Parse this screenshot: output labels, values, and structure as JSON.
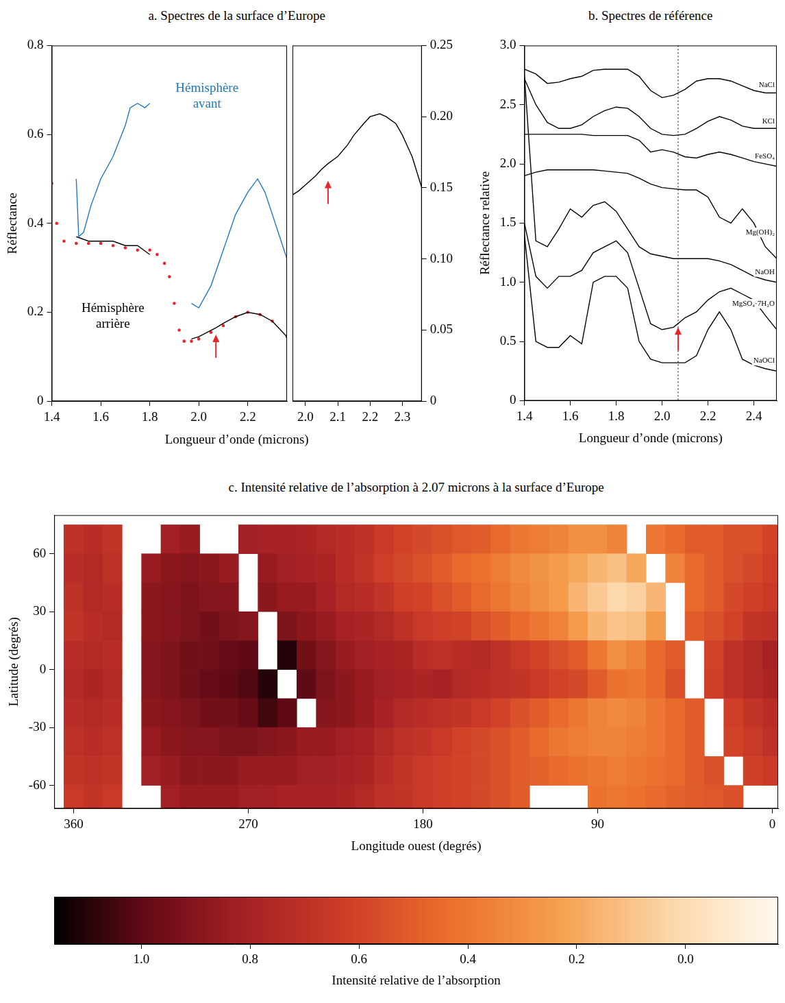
{
  "chart_data": [
    {
      "type": "line",
      "title": "a. Spectres de la surface d’Europe",
      "xlabel": "Longueur d’onde (microns)",
      "ylabel": "Réflectance",
      "xlim": [
        1.4,
        2.36
      ],
      "ylim": [
        0,
        0.8
      ],
      "xticks": [
        1.4,
        1.6,
        1.8,
        {
          "value": 2,
          "label": "2.0"
        },
        2.2
      ],
      "yticks": [
        0,
        0.2,
        0.4,
        0.6,
        0.8
      ],
      "grid": false,
      "arrow": {
        "x": 2.07,
        "y": 0.15
      },
      "series": [
        {
          "name": "Hémisphère avant",
          "color": "#1f78c1",
          "x": [
            1.5,
            1.51,
            1.53,
            1.56,
            1.6,
            1.65,
            1.7,
            1.72,
            1.75,
            1.78,
            1.8,
            1.9,
            1.97,
            2.0,
            2.05,
            2.1,
            2.15,
            2.2,
            2.24,
            2.27,
            2.3,
            2.33,
            2.36
          ],
          "values": [
            0.5,
            0.37,
            0.38,
            0.44,
            0.5,
            0.55,
            0.62,
            0.66,
            0.67,
            0.66,
            0.67,
            null,
            0.22,
            0.21,
            0.26,
            0.34,
            0.42,
            0.47,
            0.5,
            0.47,
            0.42,
            0.37,
            0.32
          ]
        },
        {
          "name": "Hémisphère arrière",
          "color": "#000000",
          "x": [
            1.5,
            1.55,
            1.6,
            1.65,
            1.7,
            1.75,
            1.8,
            1.9,
            1.97,
            2.0,
            2.07,
            2.1,
            2.15,
            2.2,
            2.25,
            2.3,
            2.36
          ],
          "values": [
            0.37,
            0.36,
            0.36,
            0.36,
            0.35,
            0.35,
            0.33,
            null,
            0.14,
            0.145,
            0.165,
            0.175,
            0.19,
            0.2,
            0.195,
            0.18,
            0.145
          ]
        },
        {
          "color": "#e8262a",
          "marker": "dot",
          "line_style": "none",
          "x": [
            1.4,
            1.42,
            1.45,
            1.5,
            1.55,
            1.6,
            1.65,
            1.7,
            1.75,
            1.8,
            1.83,
            1.86,
            1.88,
            1.9,
            1.92,
            1.94,
            1.97,
            2.0,
            2.05,
            2.1,
            2.15,
            2.2,
            2.25,
            2.3,
            2.36
          ],
          "values": [
            0.49,
            0.4,
            0.36,
            0.355,
            0.355,
            0.355,
            0.35,
            0.345,
            0.34,
            0.34,
            0.33,
            0.31,
            0.28,
            0.22,
            0.16,
            0.135,
            0.135,
            0.14,
            0.155,
            0.17,
            0.19,
            0.2,
            0.195,
            0.18,
            0.145
          ]
        }
      ]
    },
    {
      "type": "line",
      "xlim": [
        1.96,
        2.36
      ],
      "ylim": [
        0,
        0.25
      ],
      "xticks": [
        {
          "value": 2,
          "label": "2.0"
        },
        2.1,
        2.2,
        2.3
      ],
      "yticks": [
        0,
        0.05,
        {
          "value": 0.1,
          "label": "0.10"
        },
        0.15,
        {
          "value": 0.2,
          "label": "0.20"
        },
        0.25
      ],
      "grid": false,
      "arrow": {
        "x": 2.07,
        "y": 0.155
      },
      "series": [
        {
          "color": "#000000",
          "x": [
            1.96,
            1.98,
            2.0,
            2.03,
            2.05,
            2.07,
            2.1,
            2.13,
            2.15,
            2.18,
            2.2,
            2.23,
            2.25,
            2.28,
            2.3,
            2.33,
            2.36
          ],
          "values": [
            0.145,
            0.148,
            0.152,
            0.158,
            0.163,
            0.167,
            0.172,
            0.18,
            0.187,
            0.195,
            0.2,
            0.202,
            0.2,
            0.195,
            0.187,
            0.172,
            0.15
          ]
        }
      ]
    },
    {
      "type": "line",
      "title": "b. Spectres de référence",
      "xlabel": "Longueur d’onde (microns)",
      "ylabel": "Réflectance relative",
      "xlim": [
        1.4,
        2.5
      ],
      "ylim": [
        0,
        3
      ],
      "xticks": [
        1.4,
        1.6,
        1.8,
        {
          "value": 2,
          "label": "2.0"
        },
        2.2,
        2.4
      ],
      "yticks": [
        0,
        0.5,
        {
          "value": 1,
          "label": "1.0"
        },
        1.5,
        {
          "value": 2,
          "label": "2.0"
        },
        2.5,
        {
          "value": 3,
          "label": "3.0"
        }
      ],
      "grid": false,
      "vline": 2.07,
      "arrow": {
        "x": 2.07,
        "y": 0.62
      },
      "series": [
        {
          "name": "NaCl",
          "color": "#000000",
          "x": [
            1.4,
            1.45,
            1.5,
            1.55,
            1.6,
            1.65,
            1.7,
            1.75,
            1.8,
            1.85,
            1.9,
            1.95,
            2.0,
            2.05,
            2.1,
            2.15,
            2.2,
            2.25,
            2.3,
            2.35,
            2.4,
            2.45,
            2.5
          ],
          "values": [
            2.8,
            2.76,
            2.68,
            2.69,
            2.72,
            2.74,
            2.79,
            2.8,
            2.8,
            2.8,
            2.74,
            2.62,
            2.56,
            2.58,
            2.63,
            2.7,
            2.72,
            2.72,
            2.7,
            2.66,
            2.62,
            2.6,
            2.6
          ]
        },
        {
          "name": "KCl",
          "color": "#000000",
          "x": [
            1.4,
            1.45,
            1.5,
            1.55,
            1.6,
            1.65,
            1.7,
            1.75,
            1.8,
            1.85,
            1.9,
            1.95,
            2.0,
            2.05,
            2.1,
            2.15,
            2.2,
            2.25,
            2.3,
            2.35,
            2.4,
            2.45,
            2.5
          ],
          "values": [
            2.72,
            2.5,
            2.35,
            2.3,
            2.3,
            2.33,
            2.4,
            2.45,
            2.48,
            2.47,
            2.4,
            2.3,
            2.25,
            2.24,
            2.25,
            2.3,
            2.36,
            2.4,
            2.37,
            2.32,
            2.3,
            2.3,
            2.3
          ]
        },
        {
          "name": "FeSO₄",
          "color": "#000000",
          "x": [
            1.4,
            1.45,
            1.5,
            1.55,
            1.6,
            1.65,
            1.7,
            1.75,
            1.8,
            1.85,
            1.9,
            1.95,
            2.0,
            2.05,
            2.1,
            2.15,
            2.2,
            2.25,
            2.3,
            2.35,
            2.4,
            2.45,
            2.5
          ],
          "values": [
            2.25,
            2.25,
            2.25,
            2.25,
            2.25,
            2.25,
            2.24,
            2.24,
            2.24,
            2.24,
            2.2,
            2.1,
            2.12,
            2.1,
            2.06,
            2.05,
            2.08,
            2.1,
            2.08,
            2.05,
            2.02,
            2.0,
            1.98
          ]
        },
        {
          "name": "Mg(OH)₂",
          "color": "#000000",
          "x": [
            1.4,
            1.45,
            1.5,
            1.55,
            1.6,
            1.65,
            1.7,
            1.75,
            1.8,
            1.85,
            1.9,
            1.95,
            2.0,
            2.05,
            2.1,
            2.15,
            2.2,
            2.25,
            2.3,
            2.35,
            2.4,
            2.45,
            2.5
          ],
          "values": [
            1.9,
            1.93,
            1.95,
            1.95,
            1.95,
            1.95,
            1.95,
            1.94,
            1.93,
            1.92,
            1.88,
            1.83,
            1.8,
            1.79,
            1.78,
            1.78,
            1.72,
            1.55,
            1.5,
            1.62,
            1.5,
            1.3,
            1.2
          ]
        },
        {
          "name": "NaOH",
          "color": "#000000",
          "x": [
            1.4,
            1.45,
            1.5,
            1.55,
            1.6,
            1.65,
            1.7,
            1.75,
            1.8,
            1.85,
            1.9,
            1.95,
            2.0,
            2.05,
            2.1,
            2.15,
            2.2,
            2.25,
            2.3,
            2.35,
            2.4,
            2.45,
            2.5
          ],
          "values": [
            2.75,
            1.35,
            1.3,
            1.45,
            1.62,
            1.55,
            1.65,
            1.68,
            1.6,
            1.45,
            1.3,
            1.24,
            1.22,
            1.2,
            1.2,
            1.2,
            1.2,
            1.18,
            1.15,
            1.1,
            1.05,
            1.02,
            1.0
          ]
        },
        {
          "name": "MgSO₄·7H₂O",
          "color": "#000000",
          "x": [
            1.4,
            1.45,
            1.5,
            1.55,
            1.6,
            1.65,
            1.7,
            1.75,
            1.8,
            1.85,
            1.9,
            1.95,
            2.0,
            2.05,
            2.1,
            2.15,
            2.2,
            2.25,
            2.3,
            2.35,
            2.4,
            2.45,
            2.5
          ],
          "values": [
            1.5,
            1.05,
            0.95,
            1.05,
            1.05,
            1.1,
            1.25,
            1.3,
            1.35,
            1.25,
            0.95,
            0.65,
            0.6,
            0.62,
            0.7,
            0.75,
            0.85,
            0.92,
            0.95,
            0.9,
            0.85,
            0.72,
            0.6
          ]
        },
        {
          "name": "NaOCl",
          "color": "#000000",
          "x": [
            1.4,
            1.45,
            1.5,
            1.55,
            1.6,
            1.65,
            1.7,
            1.75,
            1.8,
            1.85,
            1.9,
            1.95,
            2.0,
            2.05,
            2.1,
            2.15,
            2.2,
            2.25,
            2.3,
            2.35,
            2.4,
            2.45,
            2.5
          ],
          "values": [
            1.4,
            0.5,
            0.45,
            0.45,
            0.55,
            0.48,
            1.0,
            1.05,
            1.05,
            0.95,
            0.5,
            0.35,
            0.32,
            0.32,
            0.32,
            0.38,
            0.6,
            0.75,
            0.6,
            0.35,
            0.3,
            0.27,
            0.25
          ]
        }
      ]
    },
    {
      "type": "heatmap",
      "title": "c. Intensité relative de l’absorption à 2.07 microns à la surface d’Europe",
      "xlabel": "Longitude ouest (degrés)",
      "ylabel": "Latitude (degrés)",
      "xlim": [
        370,
        -3
      ],
      "ylim": [
        -72,
        80
      ],
      "xticks": [
        360,
        270,
        180,
        90,
        0
      ],
      "yticks": [
        -60,
        -30,
        0,
        30,
        60
      ],
      "grid": false,
      "x": [
        360,
        350,
        340,
        330,
        320,
        310,
        300,
        290,
        280,
        270,
        260,
        250,
        240,
        230,
        220,
        210,
        200,
        190,
        180,
        170,
        160,
        150,
        140,
        130,
        120,
        110,
        100,
        90,
        80,
        70,
        60,
        50,
        40,
        30,
        20,
        10,
        0
      ],
      "y": [
        67.5,
        52.5,
        37.5,
        22.5,
        7.5,
        -7.5,
        -22.5,
        -37.5,
        -52.5,
        -67.5
      ],
      "cells": [
        [
          0.7,
          0.72,
          0.68,
          null,
          null,
          0.82,
          0.85,
          null,
          null,
          0.82,
          0.8,
          0.8,
          0.78,
          0.75,
          0.72,
          0.7,
          0.65,
          0.6,
          0.58,
          0.55,
          0.52,
          0.5,
          0.45,
          0.4,
          0.38,
          0.35,
          0.3,
          0.3,
          0.35,
          null,
          0.4,
          0.45,
          0.5,
          0.5,
          0.55,
          0.55,
          0.6
        ],
        [
          0.72,
          0.75,
          0.7,
          null,
          0.85,
          0.88,
          0.9,
          0.88,
          0.85,
          null,
          0.85,
          0.82,
          0.8,
          0.78,
          0.72,
          0.68,
          0.62,
          0.58,
          0.55,
          0.5,
          0.45,
          0.42,
          0.38,
          0.32,
          0.28,
          0.25,
          0.2,
          0.15,
          0.12,
          0.2,
          null,
          0.35,
          0.45,
          0.5,
          0.55,
          0.58,
          0.62
        ],
        [
          0.7,
          0.75,
          0.72,
          null,
          0.88,
          0.9,
          0.92,
          0.9,
          0.9,
          null,
          0.88,
          0.85,
          0.85,
          0.8,
          0.75,
          0.72,
          0.68,
          0.62,
          0.6,
          0.55,
          0.5,
          0.45,
          0.4,
          0.35,
          0.3,
          0.25,
          0.15,
          0.08,
          0.02,
          0.05,
          0.15,
          null,
          0.45,
          0.5,
          0.58,
          0.62,
          0.65
        ],
        [
          0.68,
          0.72,
          0.75,
          null,
          0.88,
          0.9,
          0.92,
          0.95,
          0.92,
          0.9,
          null,
          0.92,
          0.88,
          0.85,
          0.8,
          0.78,
          0.75,
          0.7,
          0.65,
          0.62,
          0.6,
          0.55,
          0.5,
          0.45,
          0.4,
          0.35,
          0.25,
          0.15,
          0.1,
          0.12,
          0.25,
          null,
          0.5,
          0.55,
          0.6,
          0.68,
          0.7
        ],
        [
          0.72,
          0.75,
          0.72,
          null,
          0.9,
          0.92,
          0.95,
          0.95,
          0.98,
          1.0,
          null,
          1.1,
          0.95,
          0.9,
          0.85,
          0.82,
          0.8,
          0.78,
          0.72,
          0.7,
          0.72,
          0.75,
          0.7,
          0.65,
          0.6,
          0.55,
          0.5,
          0.4,
          0.3,
          0.35,
          0.45,
          0.5,
          null,
          0.6,
          0.7,
          0.75,
          0.8
        ],
        [
          0.75,
          0.78,
          0.75,
          null,
          0.9,
          0.92,
          0.95,
          0.98,
          1.0,
          1.02,
          1.1,
          null,
          1.0,
          0.92,
          0.88,
          0.85,
          0.82,
          0.8,
          0.78,
          0.8,
          0.75,
          0.72,
          0.7,
          0.68,
          0.65,
          0.6,
          0.58,
          0.5,
          0.42,
          0.4,
          0.45,
          0.55,
          null,
          0.62,
          0.7,
          0.75,
          0.78
        ],
        [
          0.72,
          0.75,
          0.72,
          null,
          0.88,
          0.9,
          0.92,
          0.95,
          0.95,
          0.98,
          1.05,
          1.0,
          null,
          0.9,
          0.88,
          0.85,
          0.8,
          0.75,
          0.72,
          0.7,
          0.68,
          0.65,
          0.6,
          0.55,
          0.5,
          0.45,
          0.4,
          0.35,
          0.32,
          0.35,
          0.4,
          0.45,
          0.5,
          null,
          0.62,
          0.68,
          0.72
        ],
        [
          0.7,
          0.72,
          0.7,
          null,
          0.85,
          0.88,
          0.9,
          0.9,
          0.92,
          0.92,
          0.9,
          0.88,
          0.85,
          0.85,
          0.82,
          0.8,
          0.75,
          0.7,
          0.68,
          0.65,
          0.6,
          0.58,
          0.55,
          0.5,
          0.45,
          0.4,
          0.38,
          0.35,
          0.35,
          0.38,
          0.4,
          0.45,
          0.5,
          null,
          0.6,
          0.65,
          0.7
        ],
        [
          0.68,
          0.7,
          0.68,
          null,
          0.82,
          0.85,
          0.88,
          0.88,
          0.88,
          0.85,
          0.85,
          0.85,
          0.82,
          0.82,
          0.8,
          0.78,
          0.72,
          0.68,
          0.65,
          0.62,
          0.6,
          0.58,
          0.55,
          0.5,
          0.48,
          0.45,
          0.42,
          0.4,
          0.38,
          0.4,
          0.42,
          0.45,
          0.5,
          0.55,
          null,
          0.62,
          0.65
        ],
        [
          0.65,
          0.68,
          0.65,
          null,
          null,
          0.82,
          0.85,
          0.85,
          0.85,
          0.82,
          0.82,
          0.8,
          0.8,
          0.8,
          0.78,
          0.75,
          0.7,
          0.68,
          0.65,
          0.62,
          0.6,
          0.58,
          0.55,
          0.5,
          null,
          null,
          null,
          0.42,
          0.4,
          0.42,
          0.45,
          0.48,
          0.5,
          0.52,
          0.55,
          null,
          null
        ]
      ],
      "colorbar": {
        "label": "Intensité relative de l’absorption",
        "range": [
          1.16,
          -0.17
        ],
        "ticks": [
          {
            "value": 1,
            "label": "1.0"
          },
          0.8,
          0.6,
          0.4,
          0.2,
          {
            "value": 0,
            "label": "0.0"
          }
        ]
      }
    }
  ]
}
